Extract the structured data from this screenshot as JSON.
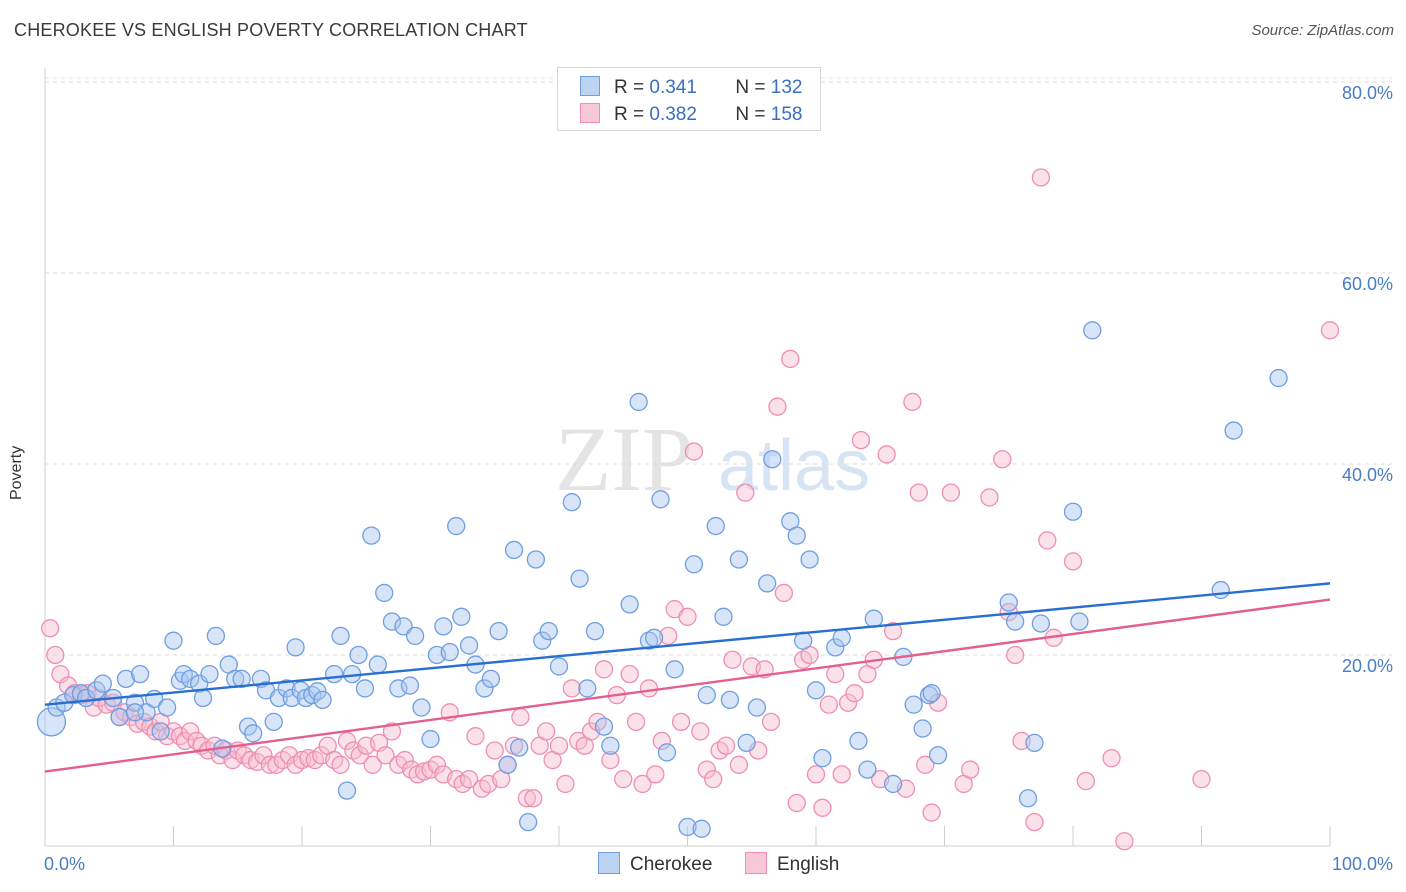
{
  "chart_data": {
    "type": "scatter",
    "title": "CHEROKEE VS ENGLISH POVERTY CORRELATION CHART",
    "source": "Source: ZipAtlas.com",
    "xlabel": "",
    "ylabel": "Poverty",
    "xlim": [
      0,
      100
    ],
    "ylim": [
      0,
      80
    ],
    "y_ticks": [
      {
        "value": 20,
        "label": "20.0%"
      },
      {
        "value": 40,
        "label": "40.0%"
      },
      {
        "value": 60,
        "label": "60.0%"
      },
      {
        "value": 80,
        "label": "80.0%"
      }
    ],
    "x_ticks": [
      {
        "value": 0,
        "label": "0.0%"
      },
      {
        "value": 100,
        "label": "100.0%"
      }
    ],
    "grid": true,
    "watermark": {
      "part1": "ZIP",
      "part2": "atlas"
    },
    "legend": {
      "position": "top-center",
      "rows": [
        {
          "r_label": "R = ",
          "r_value": "0.341",
          "n_label": "N = ",
          "n_value": "132"
        },
        {
          "r_label": "R = ",
          "r_value": "0.382",
          "n_label": "N = ",
          "n_value": "158"
        }
      ]
    },
    "series": [
      {
        "name": "Cherokee",
        "color": "#6f9fe0",
        "fill": "#a9c6ef",
        "trend_color": "#2a6fd0",
        "trend": [
          [
            0,
            14.8
          ],
          [
            100,
            27.5
          ]
        ],
        "points": [
          [
            0.5,
            13.0
          ],
          [
            0.9,
            14.5
          ],
          [
            1.5,
            15.0
          ],
          [
            2.2,
            15.8
          ],
          [
            2.8,
            16.0
          ],
          [
            3.2,
            15.5
          ],
          [
            4.0,
            16.3
          ],
          [
            4.5,
            17.0
          ],
          [
            5.3,
            15.5
          ],
          [
            5.8,
            13.5
          ],
          [
            6.3,
            17.5
          ],
          [
            7.0,
            15.0
          ],
          [
            7.4,
            18.0
          ],
          [
            7.9,
            14.0
          ],
          [
            8.5,
            15.4
          ],
          [
            9.0,
            12.0
          ],
          [
            9.5,
            14.5
          ],
          [
            10.0,
            21.5
          ],
          [
            10.5,
            17.3
          ],
          [
            10.8,
            18.0
          ],
          [
            11.3,
            17.5
          ],
          [
            12.0,
            17.0
          ],
          [
            12.3,
            15.5
          ],
          [
            12.8,
            18.0
          ],
          [
            13.3,
            22.0
          ],
          [
            13.8,
            10.2
          ],
          [
            14.3,
            19.0
          ],
          [
            14.8,
            17.5
          ],
          [
            15.3,
            17.5
          ],
          [
            15.8,
            12.5
          ],
          [
            16.2,
            11.8
          ],
          [
            16.8,
            17.5
          ],
          [
            17.2,
            16.3
          ],
          [
            17.8,
            13.0
          ],
          [
            18.2,
            15.5
          ],
          [
            18.8,
            16.5
          ],
          [
            19.2,
            15.5
          ],
          [
            19.5,
            20.8
          ],
          [
            19.9,
            16.3
          ],
          [
            20.3,
            15.5
          ],
          [
            20.8,
            15.8
          ],
          [
            21.2,
            16.2
          ],
          [
            21.6,
            15.3
          ],
          [
            22.5,
            18.0
          ],
          [
            23.0,
            22.0
          ],
          [
            23.5,
            5.8
          ],
          [
            23.9,
            18.0
          ],
          [
            24.4,
            20.0
          ],
          [
            24.9,
            16.5
          ],
          [
            25.4,
            32.5
          ],
          [
            25.9,
            19.0
          ],
          [
            26.4,
            26.5
          ],
          [
            27.0,
            23.5
          ],
          [
            27.5,
            16.5
          ],
          [
            27.9,
            23.0
          ],
          [
            28.4,
            16.8
          ],
          [
            28.8,
            22.0
          ],
          [
            29.3,
            14.5
          ],
          [
            30.0,
            11.2
          ],
          [
            30.5,
            20.0
          ],
          [
            31.0,
            23.0
          ],
          [
            31.5,
            20.3
          ],
          [
            32.0,
            33.5
          ],
          [
            32.4,
            24.0
          ],
          [
            33.0,
            21.0
          ],
          [
            33.5,
            19.0
          ],
          [
            34.2,
            16.5
          ],
          [
            34.7,
            17.5
          ],
          [
            35.3,
            22.5
          ],
          [
            36.0,
            8.5
          ],
          [
            36.5,
            31.0
          ],
          [
            36.9,
            10.3
          ],
          [
            37.6,
            2.5
          ],
          [
            38.2,
            30.0
          ],
          [
            38.7,
            21.5
          ],
          [
            39.2,
            22.5
          ],
          [
            40.0,
            18.8
          ],
          [
            41.0,
            36.0
          ],
          [
            41.6,
            28.0
          ],
          [
            42.2,
            16.5
          ],
          [
            42.8,
            22.5
          ],
          [
            43.5,
            12.5
          ],
          [
            44.0,
            10.5
          ],
          [
            45.5,
            25.3
          ],
          [
            46.2,
            46.5
          ],
          [
            47.0,
            21.5
          ],
          [
            47.4,
            21.8
          ],
          [
            47.9,
            36.3
          ],
          [
            48.4,
            9.8
          ],
          [
            49.0,
            18.5
          ],
          [
            50.0,
            2.0
          ],
          [
            50.5,
            29.5
          ],
          [
            51.1,
            1.8
          ],
          [
            51.5,
            15.8
          ],
          [
            52.2,
            33.5
          ],
          [
            52.8,
            24.0
          ],
          [
            53.3,
            15.3
          ],
          [
            54.0,
            30.0
          ],
          [
            54.6,
            10.8
          ],
          [
            55.4,
            14.5
          ],
          [
            56.2,
            27.5
          ],
          [
            56.6,
            40.5
          ],
          [
            58.0,
            34.0
          ],
          [
            58.5,
            32.5
          ],
          [
            59.0,
            21.5
          ],
          [
            59.5,
            30.0
          ],
          [
            60.0,
            16.3
          ],
          [
            60.5,
            9.2
          ],
          [
            61.5,
            20.8
          ],
          [
            62.0,
            21.8
          ],
          [
            63.3,
            11.0
          ],
          [
            64.0,
            8.0
          ],
          [
            64.5,
            23.8
          ],
          [
            66.0,
            6.5
          ],
          [
            66.8,
            19.8
          ],
          [
            67.6,
            14.8
          ],
          [
            68.3,
            12.3
          ],
          [
            68.8,
            15.8
          ],
          [
            69.5,
            9.5
          ],
          [
            69.0,
            16.0
          ],
          [
            75.0,
            25.5
          ],
          [
            75.5,
            23.5
          ],
          [
            76.5,
            5.0
          ],
          [
            77.0,
            10.8
          ],
          [
            77.5,
            23.3
          ],
          [
            80.0,
            35.0
          ],
          [
            80.5,
            23.5
          ],
          [
            81.5,
            54.0
          ],
          [
            91.5,
            26.8
          ],
          [
            92.5,
            43.5
          ],
          [
            96.0,
            49.0
          ],
          [
            7.0,
            14.0
          ]
        ]
      },
      {
        "name": "English",
        "color": "#ef8fae",
        "fill": "#f6bdd0",
        "trend_color": "#e35f8e",
        "trend": [
          [
            0,
            7.8
          ],
          [
            100,
            25.8
          ]
        ],
        "points": [
          [
            0.4,
            22.8
          ],
          [
            0.8,
            20.0
          ],
          [
            1.2,
            18.0
          ],
          [
            1.8,
            16.8
          ],
          [
            2.3,
            16.0
          ],
          [
            2.8,
            15.8
          ],
          [
            3.3,
            16.0
          ],
          [
            3.8,
            14.5
          ],
          [
            4.2,
            15.5
          ],
          [
            4.8,
            14.8
          ],
          [
            5.3,
            15.0
          ],
          [
            5.8,
            13.5
          ],
          [
            6.2,
            14.0
          ],
          [
            6.7,
            13.5
          ],
          [
            7.2,
            12.8
          ],
          [
            7.7,
            13.0
          ],
          [
            8.2,
            12.5
          ],
          [
            8.6,
            12.0
          ],
          [
            9.0,
            13.0
          ],
          [
            9.5,
            11.5
          ],
          [
            10.0,
            12.0
          ],
          [
            10.5,
            11.5
          ],
          [
            10.9,
            11.0
          ],
          [
            11.3,
            12.0
          ],
          [
            11.8,
            11.0
          ],
          [
            12.2,
            10.5
          ],
          [
            12.7,
            10.0
          ],
          [
            13.2,
            10.5
          ],
          [
            13.6,
            9.5
          ],
          [
            14.1,
            10.0
          ],
          [
            14.6,
            9.0
          ],
          [
            15.0,
            10.0
          ],
          [
            15.5,
            9.5
          ],
          [
            16.0,
            9.0
          ],
          [
            16.5,
            8.8
          ],
          [
            17.0,
            9.5
          ],
          [
            17.5,
            8.5
          ],
          [
            18.0,
            8.5
          ],
          [
            18.5,
            9.0
          ],
          [
            19.0,
            9.5
          ],
          [
            19.5,
            8.5
          ],
          [
            20.0,
            9.0
          ],
          [
            20.5,
            9.2
          ],
          [
            21.0,
            9.0
          ],
          [
            21.5,
            9.5
          ],
          [
            22.0,
            10.5
          ],
          [
            22.5,
            9.0
          ],
          [
            23.0,
            8.5
          ],
          [
            23.5,
            11.0
          ],
          [
            24.0,
            10.0
          ],
          [
            24.5,
            9.5
          ],
          [
            25.0,
            10.5
          ],
          [
            25.5,
            8.5
          ],
          [
            26.0,
            10.8
          ],
          [
            26.5,
            9.5
          ],
          [
            27.0,
            12.0
          ],
          [
            27.5,
            8.5
          ],
          [
            28.0,
            9.0
          ],
          [
            28.5,
            8.0
          ],
          [
            29.0,
            7.5
          ],
          [
            29.5,
            7.8
          ],
          [
            30.0,
            8.0
          ],
          [
            30.5,
            8.5
          ],
          [
            31.0,
            7.5
          ],
          [
            31.5,
            14.0
          ],
          [
            32.0,
            7.0
          ],
          [
            32.5,
            6.5
          ],
          [
            33.0,
            7.0
          ],
          [
            33.5,
            11.5
          ],
          [
            34.0,
            6.0
          ],
          [
            34.5,
            6.5
          ],
          [
            35.0,
            10.0
          ],
          [
            35.5,
            7.0
          ],
          [
            36.0,
            8.5
          ],
          [
            36.5,
            10.5
          ],
          [
            37.0,
            13.5
          ],
          [
            37.5,
            5.0
          ],
          [
            38.0,
            5.0
          ],
          [
            38.5,
            10.5
          ],
          [
            39.0,
            12.0
          ],
          [
            39.5,
            9.0
          ],
          [
            40.0,
            10.5
          ],
          [
            40.5,
            6.5
          ],
          [
            41.0,
            16.5
          ],
          [
            41.5,
            11.0
          ],
          [
            42.0,
            10.5
          ],
          [
            42.5,
            12.0
          ],
          [
            43.0,
            13.0
          ],
          [
            43.5,
            18.5
          ],
          [
            44.0,
            9.0
          ],
          [
            44.5,
            15.8
          ],
          [
            45.0,
            7.0
          ],
          [
            45.5,
            18.0
          ],
          [
            46.0,
            13.0
          ],
          [
            46.5,
            6.5
          ],
          [
            47.0,
            16.5
          ],
          [
            47.5,
            7.5
          ],
          [
            48.0,
            11.0
          ],
          [
            48.5,
            22.0
          ],
          [
            49.0,
            24.8
          ],
          [
            49.5,
            13.0
          ],
          [
            50.0,
            24.0
          ],
          [
            50.5,
            41.3
          ],
          [
            51.0,
            12.0
          ],
          [
            51.5,
            8.0
          ],
          [
            52.0,
            7.0
          ],
          [
            52.5,
            10.0
          ],
          [
            53.0,
            10.5
          ],
          [
            53.5,
            19.5
          ],
          [
            54.0,
            8.5
          ],
          [
            54.5,
            37.0
          ],
          [
            55.0,
            18.8
          ],
          [
            55.5,
            10.0
          ],
          [
            56.0,
            18.5
          ],
          [
            56.5,
            13.0
          ],
          [
            57.0,
            46.0
          ],
          [
            57.5,
            26.5
          ],
          [
            58.0,
            51.0
          ],
          [
            58.5,
            4.5
          ],
          [
            59.0,
            19.5
          ],
          [
            59.5,
            20.0
          ],
          [
            60.0,
            7.5
          ],
          [
            60.5,
            4.0
          ],
          [
            61.0,
            14.8
          ],
          [
            61.5,
            18.0
          ],
          [
            62.0,
            7.5
          ],
          [
            62.5,
            15.0
          ],
          [
            63.0,
            16.0
          ],
          [
            63.5,
            42.5
          ],
          [
            64.0,
            18.0
          ],
          [
            64.5,
            19.5
          ],
          [
            65.0,
            7.0
          ],
          [
            65.5,
            41.0
          ],
          [
            66.0,
            22.5
          ],
          [
            67.0,
            6.0
          ],
          [
            67.5,
            46.5
          ],
          [
            68.0,
            37.0
          ],
          [
            68.5,
            8.5
          ],
          [
            69.0,
            3.5
          ],
          [
            69.5,
            15.0
          ],
          [
            70.5,
            37.0
          ],
          [
            71.5,
            6.5
          ],
          [
            72.0,
            8.0
          ],
          [
            73.5,
            36.5
          ],
          [
            74.5,
            40.5
          ],
          [
            75.0,
            24.5
          ],
          [
            75.5,
            20.0
          ],
          [
            76.0,
            11.0
          ],
          [
            77.0,
            2.5
          ],
          [
            77.5,
            70.0
          ],
          [
            78.0,
            32.0
          ],
          [
            78.5,
            21.8
          ],
          [
            80.0,
            29.8
          ],
          [
            81.0,
            6.8
          ],
          [
            83.0,
            9.2
          ],
          [
            84.0,
            0.5
          ],
          [
            90.0,
            7.0
          ],
          [
            100.0,
            54.0
          ]
        ]
      }
    ]
  }
}
